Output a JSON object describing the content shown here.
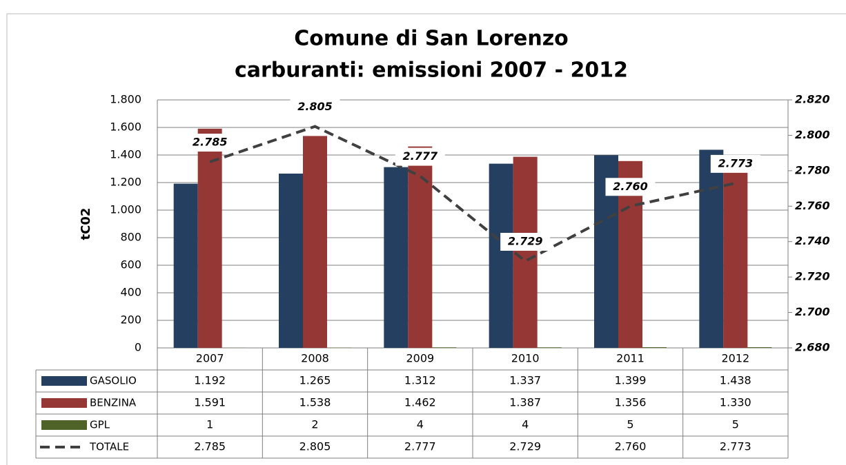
{
  "chart_data": {
    "type": "bar",
    "title": "Comune di San Lorenzo",
    "subtitle": "carburanti: emissioni 2007 - 2012",
    "y_label": "tC02",
    "categories": [
      "2007",
      "2008",
      "2009",
      "2010",
      "2011",
      "2012"
    ],
    "series": [
      {
        "name": "GASOLIO",
        "color": "#243f60",
        "values": [
          1192,
          1265,
          1312,
          1337,
          1399,
          1438
        ],
        "value_labels": [
          "1.192",
          "1.265",
          "1.312",
          "1.337",
          "1.399",
          "1.438"
        ]
      },
      {
        "name": "BENZINA",
        "color": "#953735",
        "values": [
          1591,
          1538,
          1462,
          1387,
          1356,
          1330
        ],
        "value_labels": [
          "1.591",
          "1.538",
          "1.462",
          "1.387",
          "1.356",
          "1.330"
        ]
      },
      {
        "name": "GPL",
        "color": "#4f6228",
        "values": [
          1,
          2,
          4,
          4,
          5,
          5
        ]
      },
      {
        "name": "TOTALE",
        "color": "#404040",
        "type": "line",
        "dashed": true,
        "axis": "y2",
        "values": [
          2785,
          2805,
          2777,
          2729,
          2760,
          2773
        ],
        "value_labels": [
          "2.785",
          "2.805",
          "2.777",
          "2.729",
          "2.760",
          "2.773"
        ]
      }
    ],
    "ylim": [
      0,
      1800
    ],
    "yticks": [
      0,
      200,
      400,
      600,
      800,
      {
        "value": 1000,
        "label": "1.000"
      },
      {
        "value": 1200,
        "label": "1.200"
      },
      {
        "value": 1400,
        "label": "1.400"
      },
      {
        "value": 1600,
        "label": "1.600"
      },
      {
        "value": 1800,
        "label": "1.800"
      }
    ],
    "y2lim": [
      2680,
      2820
    ],
    "y2ticks": [
      {
        "value": 2680,
        "label": "2.680"
      },
      {
        "value": 2700,
        "label": "2.700"
      },
      {
        "value": 2720,
        "label": "2.720"
      },
      {
        "value": 2740,
        "label": "2.740"
      },
      {
        "value": 2760,
        "label": "2.760"
      },
      {
        "value": 2780,
        "label": "2.780"
      },
      {
        "value": 2800,
        "label": "2.800"
      },
      {
        "value": 2820,
        "label": "2.820"
      }
    ],
    "grid": true
  }
}
